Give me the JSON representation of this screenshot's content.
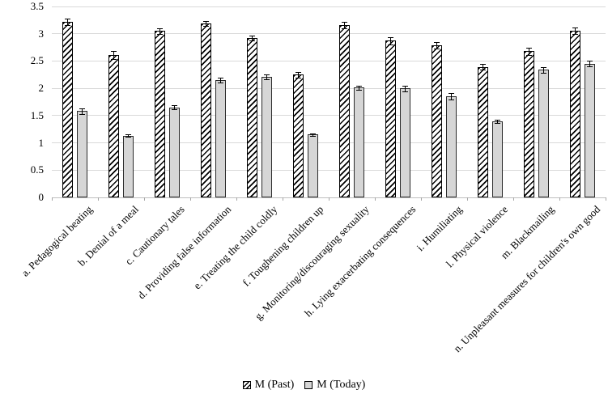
{
  "figure": {
    "background": "#ffffff"
  },
  "colors": {
    "grid": "#d9d9d9",
    "axis": "#bfbfbf",
    "tick": "#a6a6a6",
    "text": "#000000",
    "bar_border": "#000000",
    "past_hatch": "#000000",
    "today_fill": "#d6d6d6",
    "background": "#ffffff"
  },
  "chart_data": {
    "type": "bar",
    "title": "",
    "xlabel": "",
    "ylabel": "",
    "categories": [
      "a. Pedagogical beating",
      "b. Denial of a meal",
      "c. Cautionary tales",
      "d. Providing false information",
      "e. Treating the child coldly",
      "f. Toughening children up",
      "g. Monitoring/discouraging sexuality",
      "h. Lying exacerbating consequences",
      "i. Humiliating",
      "l. Physical violence",
      "m. Blackmailing",
      "n. Unpleasant measures for children's own good"
    ],
    "series": [
      {
        "name": "M (Past)",
        "fill": "hatch-diagonal-up",
        "values": [
          3.22,
          2.61,
          3.05,
          3.19,
          2.92,
          2.25,
          3.16,
          2.87,
          2.79,
          2.39,
          2.68,
          3.06
        ],
        "errors": [
          0.06,
          0.07,
          0.05,
          0.05,
          0.05,
          0.05,
          0.06,
          0.06,
          0.06,
          0.05,
          0.07,
          0.06
        ]
      },
      {
        "name": "M (Today)",
        "fill": "#d6d6d6",
        "values": [
          1.58,
          1.13,
          1.65,
          2.15,
          2.21,
          1.15,
          2.01,
          2.0,
          1.86,
          1.39,
          2.34,
          2.45
        ],
        "errors": [
          0.05,
          0.02,
          0.04,
          0.05,
          0.05,
          0.02,
          0.04,
          0.05,
          0.06,
          0.03,
          0.05,
          0.05
        ]
      }
    ],
    "ylim": [
      0,
      3.5
    ],
    "yticks": [
      {
        "value": 0,
        "label": "0"
      },
      {
        "value": 0.5,
        "label": "0.5"
      },
      {
        "value": 1,
        "label": "1"
      },
      {
        "value": 1.5,
        "label": "1.5"
      },
      {
        "value": 2,
        "label": "2"
      },
      {
        "value": 2.5,
        "label": "2.5"
      },
      {
        "value": 3,
        "label": "3"
      },
      {
        "value": 3.5,
        "label": "3.5"
      }
    ],
    "grid": "horizontal",
    "error_bars": true,
    "legend": {
      "position": "bottom-center",
      "items": [
        "M (Past)",
        "M (Today)"
      ]
    }
  }
}
